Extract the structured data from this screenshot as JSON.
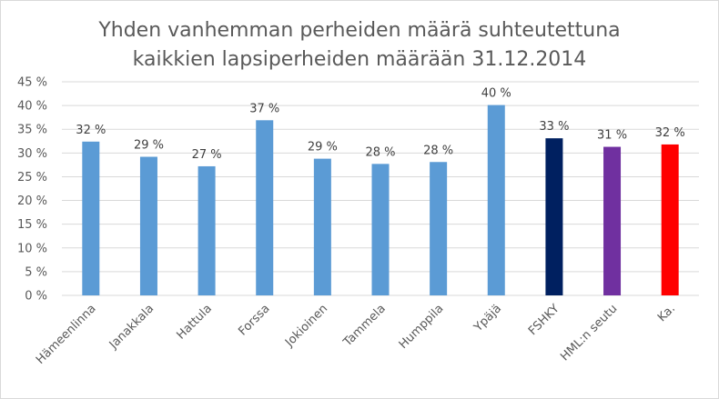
{
  "chart_data": {
    "type": "bar",
    "title_line1": "Yhden vanhemman perheiden määrä suhteutettuna",
    "title_line2": "kaikkien lapsiperheiden määrään 31.12.2014",
    "xlabel": "",
    "ylabel": "",
    "ylim": [
      0,
      45
    ],
    "yticks": [
      0,
      5,
      10,
      15,
      20,
      25,
      30,
      35,
      40,
      45
    ],
    "ytick_labels": [
      "0 %",
      "5 %",
      "10 %",
      "15 %",
      "20 %",
      "25 %",
      "30 %",
      "35 %",
      "40 %",
      "45 %"
    ],
    "grid": true,
    "categories": [
      "Hämeenlinna",
      "Janakkala",
      "Hattula",
      "Forssa",
      "Jokioinen",
      "Tammela",
      "Humppila",
      "Ypäjä",
      "FSHKY",
      "HML:n seutu",
      "Ka."
    ],
    "values": [
      32.4,
      29.2,
      27.2,
      36.9,
      28.8,
      27.7,
      28.1,
      40.1,
      33.1,
      31.3,
      31.8
    ],
    "data_labels": [
      "32 %",
      "29 %",
      "27 %",
      "37 %",
      "29 %",
      "28 %",
      "28 %",
      "40 %",
      "33 %",
      "31 %",
      "32 %"
    ],
    "colors": [
      "#5b9bd5",
      "#5b9bd5",
      "#5b9bd5",
      "#5b9bd5",
      "#5b9bd5",
      "#5b9bd5",
      "#5b9bd5",
      "#5b9bd5",
      "#002060",
      "#7030a0",
      "#ff0000"
    ]
  }
}
